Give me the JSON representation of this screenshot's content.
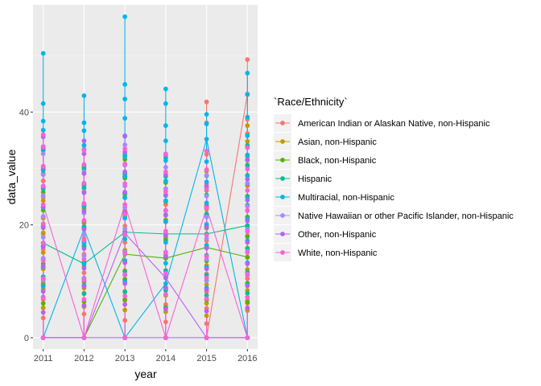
{
  "chart_data": {
    "type": "line",
    "title": "",
    "xlabel": "year",
    "ylabel": "data_value",
    "x": [
      2011,
      2012,
      2013,
      2014,
      2015,
      2016
    ],
    "x_ticks": [
      "2011",
      "2012",
      "2013",
      "2014",
      "2015",
      "2016"
    ],
    "y_ticks": [
      "0",
      "20",
      "40"
    ],
    "y_tick_values": [
      0,
      20,
      40
    ],
    "xlim": [
      2010.75,
      2016.25
    ],
    "ylim": [
      -2.0,
      59.0
    ],
    "grid": true,
    "legend_position": "right",
    "legend_title": "`Race/Ethnicity`",
    "series": [
      {
        "name": "American Indian or Alaskan Native, non-Hispanic",
        "color": "#F8766D",
        "line": [
          0,
          0,
          0,
          0,
          0,
          43.2
        ],
        "points": [
          [
            0,
            3.5,
            6.8,
            9.8,
            12.4,
            15.7,
            18.6,
            21.4,
            24.9,
            27.8
          ],
          [
            0,
            4.2,
            7.9,
            11.5,
            14.8,
            17.6,
            20.3,
            23.2,
            26.8,
            30.1
          ],
          [
            0,
            3.1,
            6.6,
            10.2,
            13.5,
            16.9,
            19.8,
            22.6,
            25.7,
            28.9
          ],
          [
            0,
            2.8,
            5.9,
            8.7,
            11.9,
            14.6,
            17.8,
            20.5,
            23.6,
            26.4
          ],
          [
            0,
            2.5,
            5.2,
            8.1,
            11.3,
            14.4,
            17.2,
            20.1,
            23.5,
            27.2,
            32.5,
            38.1,
            41.8
          ],
          [
            0,
            4.8,
            6.1,
            6.6,
            10.5,
            14.2,
            18.1,
            22.6,
            26.9,
            30.4,
            33.8,
            36.2,
            38.7,
            43.2,
            49.3
          ]
        ]
      },
      {
        "name": "Asian, non-Hispanic",
        "color": "#C49A00",
        "line": [
          0,
          0,
          0,
          0,
          0,
          0
        ],
        "points": [
          [
            0,
            5.3,
            8.6,
            12.2,
            15.1,
            18.4,
            21.2,
            24.3
          ],
          [
            0,
            5.5,
            8.8,
            12.6,
            16.1,
            19.5,
            22.8,
            25.9
          ],
          [
            0,
            4.9,
            8.2,
            11.9,
            15.5,
            18.8,
            22.1,
            25.4,
            28.5
          ],
          [
            0,
            4.6,
            7.5,
            10.9,
            14.1,
            17.7,
            20.9,
            24.1
          ],
          [
            0,
            3.9,
            6.1,
            9.4,
            12.8,
            16.2,
            19.4,
            22.8,
            26.1,
            29.5
          ],
          [
            0,
            5.1,
            8.4,
            12.1,
            15.9,
            19.6,
            23.4,
            27.1,
            31.4,
            34.8,
            37.6
          ]
        ]
      },
      {
        "name": "Black, non-Hispanic",
        "color": "#53B400",
        "line": [
          0,
          0,
          14.8,
          14.1,
          16.0,
          14.3
        ],
        "points": [
          [
            0,
            6.1,
            9.4,
            13.1,
            16.2,
            19.5,
            22.6,
            25.8,
            29.1
          ],
          [
            0,
            6.4,
            9.9,
            13.4,
            17.1,
            20.6,
            23.7,
            27.1,
            30.3
          ],
          [
            0,
            6.8,
            10.4,
            14.8,
            18.2,
            21.6,
            24.9,
            28.3,
            31.6
          ],
          [
            0,
            5.4,
            8.9,
            14.1,
            17.3,
            20.7,
            24.2,
            27.5
          ],
          [
            0,
            6.7,
            10.1,
            13.6,
            16.0,
            19.8,
            23.3,
            26.7
          ],
          [
            0,
            6.3,
            9.7,
            14.3,
            17.9,
            21.4,
            25.1,
            28.8,
            32.2
          ]
        ]
      },
      {
        "name": "Hispanic",
        "color": "#00C094",
        "line": [
          16.8,
          13.1,
          18.7,
          18.4,
          18.4,
          19.9
        ],
        "points": [
          [
            0,
            7.2,
            10.8,
            13.9,
            16.8,
            19.9,
            23.1,
            26.4,
            29.7,
            33.2
          ],
          [
            0,
            7.8,
            10.5,
            13.1,
            16.3,
            19.7,
            23.2,
            26.5,
            29.9,
            33.4
          ],
          [
            0,
            8.1,
            11.7,
            15.2,
            18.7,
            22.1,
            25.6,
            29.1,
            32.4
          ],
          [
            0,
            8.4,
            11.9,
            15.1,
            18.4,
            21.8,
            25.2,
            28.6,
            31.9
          ],
          [
            0,
            7.5,
            11.1,
            14.6,
            18.4,
            21.9,
            25.3,
            28.7
          ],
          [
            0,
            7.9,
            11.6,
            15.8,
            19.9,
            23.5,
            27.3,
            30.6,
            34.1
          ]
        ]
      },
      {
        "name": "Multiracial, non-Hispanic",
        "color": "#00B6EB",
        "line": [
          0,
          19.3,
          0,
          9.6,
          35.2,
          0
        ],
        "points": [
          [
            0,
            9.1,
            12.6,
            16.3,
            19.8,
            23.1,
            26.6,
            29.9,
            33.5,
            36.8,
            38.4,
            41.5,
            50.4
          ],
          [
            0,
            9.3,
            13.1,
            16.8,
            19.3,
            23.5,
            27.2,
            30.6,
            34.1,
            36.7,
            38.1,
            42.9
          ],
          [
            0,
            9.9,
            13.7,
            17.5,
            21.2,
            24.8,
            28.6,
            32.1,
            35.7,
            38.9,
            42.3,
            44.9,
            56.9
          ],
          [
            0,
            9.6,
            13.2,
            16.9,
            20.6,
            24.3,
            27.8,
            31.4,
            34.9,
            37.6,
            41.5,
            44.1
          ],
          [
            0,
            8.8,
            12.5,
            16.4,
            20.1,
            23.9,
            27.6,
            31.2,
            35.2,
            37.9,
            39.6
          ],
          [
            0,
            9.4,
            13.3,
            17.2,
            21.1,
            24.9,
            28.7,
            32.4,
            35.8,
            39.1,
            43.1,
            46.9
          ]
        ]
      },
      {
        "name": "Native Hawaiian or other Pacific Islander, non-Hispanic",
        "color": "#A58AFF",
        "line": [
          0,
          0,
          0,
          0,
          0,
          0
        ],
        "points": [
          [
            0,
            10.2,
            14.1,
            17.8,
            21.5,
            25.2,
            28.9,
            32.6
          ],
          [
            0,
            10.6,
            14.5,
            18.3,
            22.1,
            25.9,
            29.4,
            33.3
          ],
          [
            0,
            11.1,
            15.2,
            19.3,
            23.1,
            26.9,
            30.6,
            34.2
          ],
          [
            0,
            10.8,
            14.7,
            18.6,
            22.5,
            26.4,
            30.2
          ],
          [
            0,
            10.1,
            13.9,
            17.6,
            21.4,
            25.1,
            28.8
          ],
          [
            0,
            11.3,
            15.3,
            19.2,
            23.3,
            27.4,
            31.5
          ]
        ]
      },
      {
        "name": "Other, non-Hispanic",
        "color": "#B464F0",
        "line": [
          0,
          0,
          18.5,
          10.6,
          0,
          0
        ],
        "points": [
          [
            0,
            4.5,
            8.2,
            12.7,
            16.1,
            19.6,
            23.2,
            26.8,
            30.2,
            33.7,
            35.6
          ],
          [
            0,
            5.7,
            9.1,
            12.3,
            15.8,
            19.2,
            22.4,
            25.7,
            29.1,
            32.6,
            34.9
          ],
          [
            0,
            5.9,
            9.6,
            13.3,
            18.5,
            22.2,
            25.8,
            29.4,
            32.9,
            35.8
          ],
          [
            0,
            5.1,
            8.8,
            10.6,
            14.4,
            18.1,
            21.7,
            25.3,
            28.9,
            32.4
          ],
          [
            0,
            4.7,
            8.5,
            12.2,
            15.9,
            19.6,
            23.2,
            26.8
          ],
          [
            0,
            5.3,
            9.2,
            13.1,
            16.9,
            20.7,
            24.4,
            28.1,
            31.6
          ]
        ]
      },
      {
        "name": "White, non-Hispanic",
        "color": "#FB61D7",
        "line": [
          23.6,
          0,
          23.6,
          0,
          23.0,
          0
        ],
        "points": [
          [
            0,
            7.1,
            10.5,
            13.7,
            16.8,
            20.2,
            23.6,
            26.9,
            30.4,
            33.9,
            36.0
          ],
          [
            0,
            6.8,
            10.2,
            13.9,
            17.3,
            20.8,
            23.8,
            27.4,
            30.7,
            33.2
          ],
          [
            0,
            7.4,
            11.2,
            14.9,
            18.3,
            21.9,
            23.6,
            27.3,
            30.8,
            33.5
          ],
          [
            0,
            7.7,
            11.4,
            15.2,
            18.9,
            22.6,
            25.9,
            29.4,
            32.6
          ],
          [
            0,
            6.9,
            10.6,
            14.4,
            18.2,
            23.0,
            26.3,
            29.8,
            33.1
          ],
          [
            0,
            7.2,
            11.1,
            15.1,
            18.8,
            22.5,
            26.1,
            29.9,
            33.7
          ]
        ]
      }
    ]
  }
}
